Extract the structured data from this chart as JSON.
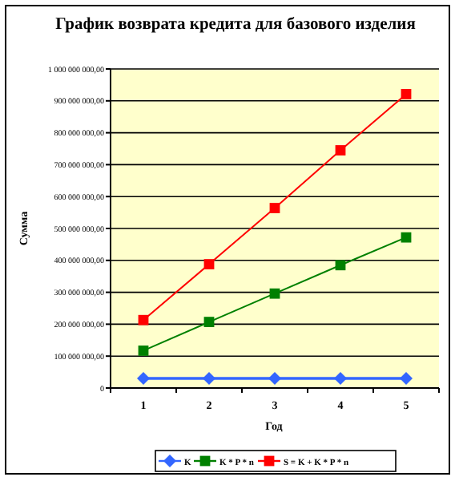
{
  "chart_data": {
    "type": "line",
    "title": "График возврата кредита для базового изделия",
    "xlabel": "Год",
    "ylabel": "Сумма",
    "categories": [
      "1",
      "2",
      "3",
      "4",
      "5"
    ],
    "series": [
      {
        "name": "K",
        "color": "#3366ff",
        "marker": "diamond",
        "values": [
          30000000,
          30000000,
          30000000,
          30000000,
          30000000
        ]
      },
      {
        "name": "K * P * n",
        "color": "#008000",
        "marker": "square",
        "values": [
          117000000,
          207000000,
          296000000,
          385000000,
          472000000
        ]
      },
      {
        "name": "S = K + K * P * n",
        "color": "#ff0000",
        "marker": "square",
        "values": [
          213000000,
          388000000,
          564000000,
          745000000,
          921000000
        ]
      }
    ],
    "ylim": [
      0,
      1000000000
    ],
    "yticks": [
      0,
      {
        "value": 100000000,
        "label": "100 000 000,00"
      },
      {
        "value": 200000000,
        "label": "200 000 000,00"
      },
      {
        "value": 300000000,
        "label": "300 000 000,00"
      },
      {
        "value": 400000000,
        "label": "400 000 000,00"
      },
      {
        "value": 500000000,
        "label": "500 000 000,00"
      },
      {
        "value": 600000000,
        "label": "600 000 000,00"
      },
      {
        "value": 700000000,
        "label": "700 000 000,00"
      },
      {
        "value": 800000000,
        "label": "800 000 000,00"
      },
      {
        "value": 900000000,
        "label": "900 000 000,00"
      },
      {
        "value": 1000000000,
        "label": "1 000 000 000,00"
      }
    ],
    "grid": "y",
    "legend": "bottom"
  }
}
